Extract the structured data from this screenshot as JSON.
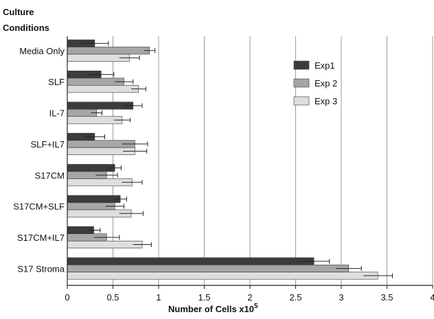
{
  "chart_data": {
    "type": "bar",
    "orientation": "horizontal",
    "y_axis_title": [
      "Culture",
      "Conditions"
    ],
    "xlabel": "Number of Cells x10",
    "xlabel_superscript": "5",
    "xlim": [
      0,
      4
    ],
    "x_ticks": [
      "0",
      "0.5",
      "1",
      "1.5",
      "2",
      "2.5",
      "3",
      "3.5",
      "4"
    ],
    "grid": "vertical",
    "legend_position": "top-right",
    "categories": [
      "Media Only",
      "SLF",
      "IL-7",
      "SLF+IL7",
      "S17CM",
      "S17CM+SLF",
      "S17CM+IL7",
      "S17 Stroma"
    ],
    "series": [
      {
        "name": "Exp1",
        "color": "#3c3c3c",
        "values": [
          0.3,
          0.37,
          0.72,
          0.3,
          0.52,
          0.58,
          0.29,
          2.7
        ],
        "errors": [
          0.15,
          0.14,
          0.1,
          0.11,
          0.07,
          0.07,
          0.07,
          0.17
        ]
      },
      {
        "name": "Exp 2",
        "color": "#a6a6a6",
        "values": [
          0.9,
          0.62,
          0.32,
          0.74,
          0.43,
          0.52,
          0.43,
          3.08
        ],
        "errors": [
          0.06,
          0.1,
          0.06,
          0.14,
          0.12,
          0.1,
          0.14,
          0.14
        ]
      },
      {
        "name": "Exp 3",
        "color": "#dedede",
        "values": [
          0.68,
          0.78,
          0.6,
          0.74,
          0.71,
          0.7,
          0.82,
          3.4
        ],
        "errors": [
          0.11,
          0.08,
          0.09,
          0.13,
          0.11,
          0.13,
          0.1,
          0.16
        ]
      }
    ]
  }
}
